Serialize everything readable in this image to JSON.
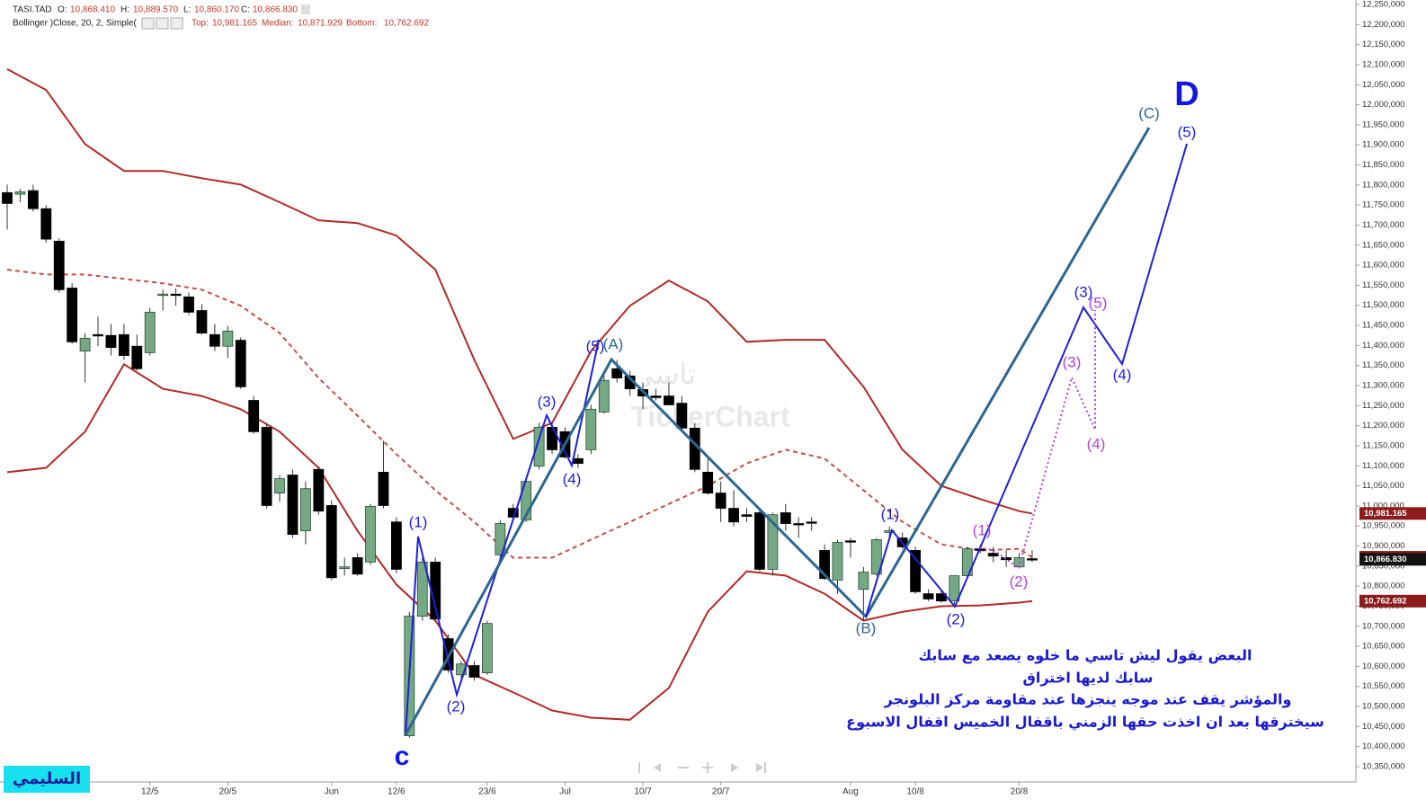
{
  "header": {
    "symbol": "TASI.TAD",
    "o_label": "O:",
    "o": "10,868.410",
    "h_label": "H:",
    "h": "10,889.570",
    "l_label": "L:",
    "l": "10,860.170",
    "c_label": "C:",
    "c": "10,866.830",
    "indicator": "Bollinger )Close, 20, 2, Simple(",
    "top_label": "Top:",
    "top": "10,981.165",
    "median_label": "Median:",
    "median": "10,871.929",
    "bottom_label": "Bottom:",
    "bottom": "10,762.692"
  },
  "watermark": [
    "تاسي",
    "TickerChart"
  ],
  "notes": [
    "البعض يقول ليش تاسي ما خلوه يصعد مع سابك",
    "سابك لديها اختراق",
    "والمؤشر يقف عند موجه ينجزها عند مقاومة مركز البلونجر",
    "سيخترقها بعد ان اخذت حقها الزمني باقفال الخميس اقفال الاسبوع"
  ],
  "author": "السليمي",
  "chart_data": {
    "type": "candlestick",
    "categories": [
      null,
      null,
      null,
      null,
      null,
      null,
      null,
      null,
      null,
      null,
      null,
      "12/5",
      null,
      null,
      null,
      null,
      null,
      "20/5",
      null,
      null,
      null,
      null,
      null,
      null,
      null,
      "Jun",
      null,
      null,
      null,
      null,
      "12/6",
      null,
      null,
      null,
      null,
      null,
      null,
      "23/6",
      null,
      null,
      null,
      null,
      null,
      "Jul",
      null,
      null,
      null,
      null,
      null,
      "10/7",
      null,
      null,
      null,
      null,
      null,
      "20/7",
      null,
      null,
      null,
      null,
      null,
      null,
      null,
      null,
      null,
      "Aug",
      null,
      null,
      null,
      null,
      "10/8",
      null,
      null,
      null,
      null,
      null,
      null,
      null,
      "20/8",
      null
    ],
    "open": [
      11781000,
      11777000,
      11786000,
      11741000,
      11660000,
      11543000,
      11386000,
      11427000,
      11425000,
      11427000,
      11398000,
      11382000,
      11526000,
      11528000,
      11521000,
      11487000,
      11427000,
      11398000,
      11413000,
      11263000,
      11196000,
      11032000,
      11077000,
      10938000,
      11091000,
      11001000,
      10844000,
      10871000,
      10860000,
      11084000,
      10960000,
      10427000,
      10725000,
      10860000,
      10669000,
      10579000,
      10602000,
      10584000,
      10878000,
      10994000,
      10965000,
      11099000,
      11196000,
      11185000,
      11118000,
      11140000,
      11234000,
      11342000,
      11324000,
      11290000,
      11274000,
      11274000,
      11256000,
      11194000,
      11084000,
      11032000,
      10994000,
      10978000,
      10983000,
      10842000,
      10983000,
      10956000,
      10960000,
      10889000,
      10815000,
      10913000,
      10792000,
      10830000,
      10934000,
      10920000,
      10889000,
      10781000,
      10781000,
      10763000,
      10826000,
      10893000,
      10882000,
      10871000,
      10848000,
      10868410
    ],
    "high": [
      11801000,
      11790000,
      11801000,
      11750000,
      11667000,
      11555000,
      11431000,
      11472000,
      11454000,
      11454000,
      11427000,
      11494000,
      11539000,
      11543000,
      11532000,
      11503000,
      11454000,
      11449000,
      11420000,
      11274000,
      11207000,
      11077000,
      11091000,
      11061000,
      11099000,
      11014000,
      10871000,
      10882000,
      11005000,
      11162000,
      10972000,
      10736000,
      10871000,
      10871000,
      10680000,
      10613000,
      10613000,
      10714000,
      10965000,
      11005000,
      11068000,
      11207000,
      11207000,
      11196000,
      11129000,
      11252000,
      11331000,
      11364000,
      11337000,
      11308000,
      11292000,
      11308000,
      11274000,
      11207000,
      11118000,
      11061000,
      11039000,
      10994000,
      10994000,
      10983000,
      11005000,
      10972000,
      10972000,
      10904000,
      10916000,
      10920000,
      10848000,
      10920000,
      10949000,
      10934000,
      10898000,
      10792000,
      10792000,
      10826000,
      10898000,
      10904000,
      10898000,
      10889000,
      10882000,
      10889570
    ],
    "low": [
      11689000,
      11757000,
      11734000,
      11656000,
      11532000,
      11404000,
      11308000,
      11398000,
      11375000,
      11364000,
      11337000,
      11375000,
      11487000,
      11499000,
      11476000,
      11427000,
      11386000,
      11369000,
      11292000,
      11180000,
      10994000,
      11010000,
      10920000,
      10904000,
      10978000,
      10815000,
      10826000,
      10826000,
      10853000,
      10994000,
      10833000,
      10422000,
      10714000,
      10714000,
      10584000,
      10568000,
      10564000,
      10579000,
      10871000,
      10965000,
      10960000,
      11091000,
      11129000,
      11118000,
      11095000,
      11129000,
      11230000,
      11308000,
      11274000,
      11241000,
      11263000,
      11252000,
      11185000,
      11084000,
      11028000,
      10960000,
      10949000,
      10960000,
      10837000,
      10826000,
      10938000,
      10920000,
      10938000,
      10815000,
      10781000,
      10871000,
      10714000,
      10826000,
      10916000,
      10893000,
      10781000,
      10763000,
      10759000,
      10754000,
      10821000,
      10882000,
      10860000,
      10848000,
      10844000,
      10860170
    ],
    "close": [
      11754000,
      11783000,
      11741000,
      11665000,
      11539000,
      11409000,
      11418000,
      11425000,
      11395000,
      11375000,
      11342000,
      11483000,
      11528000,
      11526000,
      11483000,
      11431000,
      11398000,
      11436000,
      11297000,
      11185000,
      11001000,
      11068000,
      10929000,
      11043000,
      10987000,
      10821000,
      10848000,
      10830000,
      10999000,
      11001000,
      10842000,
      10725000,
      10860000,
      10718000,
      10591000,
      10606000,
      10573000,
      10707000,
      10956000,
      10972000,
      11061000,
      11196000,
      11140000,
      11122000,
      11106000,
      11241000,
      11313000,
      11319000,
      11292000,
      11274000,
      11270000,
      11252000,
      11194000,
      11091000,
      11032000,
      10994000,
      10960000,
      10974000,
      10842000,
      10978000,
      10956000,
      10954000,
      10958000,
      10819000,
      10909000,
      10911000,
      10835000,
      10916000,
      10938000,
      10898000,
      10786000,
      10768000,
      10763000,
      10826000,
      10893000,
      10889000,
      10875000,
      10866000,
      10871000,
      10866830
    ],
    "up_color": "#74a983",
    "down_color": "#000000",
    "ylim": [
      10311900,
      12261200
    ],
    "yticks": [
      {
        "value": 10350000,
        "label": "10,350,000"
      },
      {
        "value": 10400000,
        "label": "10,400,000"
      },
      {
        "value": 10450000,
        "label": "10,450,000"
      },
      {
        "value": 10500000,
        "label": "10,500,000"
      },
      {
        "value": 10550000,
        "label": "10,550,000"
      },
      {
        "value": 10600000,
        "label": "10,600,000"
      },
      {
        "value": 10650000,
        "label": "10,650,000"
      },
      {
        "value": 10700000,
        "label": "10,700,000"
      },
      {
        "value": 10750000,
        "label": "10,750,000"
      },
      {
        "value": 10800000,
        "label": "10,800,000"
      },
      {
        "value": 10850000,
        "label": "10,850,000"
      },
      {
        "value": 10900000,
        "label": "10,900,000"
      },
      {
        "value": 10950000,
        "label": "10,950,000"
      },
      {
        "value": 11000000,
        "label": "11,000,000"
      },
      {
        "value": 11050000,
        "label": "11,050,000"
      },
      {
        "value": 11100000,
        "label": "11,100,000"
      },
      {
        "value": 11150000,
        "label": "11,150,000"
      },
      {
        "value": 11200000,
        "label": "11,200,000"
      },
      {
        "value": 11250000,
        "label": "11,250,000"
      },
      {
        "value": 11300000,
        "label": "11,300,000"
      },
      {
        "value": 11350000,
        "label": "11,350,000"
      },
      {
        "value": 11400000,
        "label": "11,400,000"
      },
      {
        "value": 11450000,
        "label": "11,450,000"
      },
      {
        "value": 11500000,
        "label": "11,500,000"
      },
      {
        "value": 11550000,
        "label": "11,550,000"
      },
      {
        "value": 11600000,
        "label": "11,600,000"
      },
      {
        "value": 11650000,
        "label": "11,650,000"
      },
      {
        "value": 11700000,
        "label": "11,700,000"
      },
      {
        "value": 11750000,
        "label": "11,750,000"
      },
      {
        "value": 11800000,
        "label": "11,800,000"
      },
      {
        "value": 11850000,
        "label": "11,850,000"
      },
      {
        "value": 11900000,
        "label": "11,900,000"
      },
      {
        "value": 11950000,
        "label": "11,950,000"
      },
      {
        "value": 12000000,
        "label": "12,000,000"
      },
      {
        "value": 12050000,
        "label": "12,050,000"
      },
      {
        "value": 12100000,
        "label": "12,100,000"
      },
      {
        "value": 12150000,
        "label": "12,150,000"
      },
      {
        "value": 12200000,
        "label": "12,200,000"
      },
      {
        "value": 12250000,
        "label": "12,250,000"
      }
    ],
    "bands": [
      {
        "color": "#b02a2a",
        "dashed": false,
        "x": [
          0,
          3,
          6,
          9,
          12,
          15,
          18,
          21,
          24,
          27,
          30,
          33,
          36,
          39,
          42,
          45,
          48,
          51,
          54,
          57,
          60,
          63,
          66,
          69,
          72,
          75,
          78,
          79
        ],
        "values": [
          12089000,
          12037000,
          11902000,
          11835000,
          11835000,
          11817000,
          11801000,
          11757000,
          11712000,
          11705000,
          11674000,
          11589000,
          11364000,
          11167000,
          11207000,
          11386000,
          11499000,
          11562000,
          11510000,
          11409000,
          11414000,
          11414000,
          11297000,
          11140000,
          11050000,
          11017000,
          10987000,
          10981165
        ]
      },
      {
        "color": "#c0504d",
        "dashed": true,
        "x": [
          0,
          3,
          6,
          9,
          12,
          15,
          18,
          21,
          24,
          27,
          30,
          33,
          36,
          39,
          42,
          45,
          48,
          51,
          54,
          57,
          60,
          63,
          66,
          69,
          72,
          75,
          78,
          79
        ],
        "values": [
          11589000,
          11577000,
          11577000,
          11566000,
          11555000,
          11539000,
          11499000,
          11431000,
          11319000,
          11225000,
          11129000,
          11039000,
          10960000,
          10871000,
          10871000,
          10916000,
          10960000,
          11005000,
          11050000,
          11106000,
          11140000,
          11118000,
          11039000,
          10960000,
          10904000,
          10889000,
          10893000,
          10871929
        ]
      },
      {
        "color": "#b02a2a",
        "dashed": false,
        "x": [
          0,
          3,
          6,
          9,
          12,
          15,
          18,
          21,
          24,
          27,
          30,
          33,
          36,
          39,
          42,
          45,
          48,
          51,
          54,
          57,
          60,
          63,
          66,
          69,
          72,
          75,
          78,
          79
        ],
        "values": [
          11084000,
          11095000,
          11185000,
          11353000,
          11292000,
          11274000,
          11241000,
          11185000,
          11095000,
          10938000,
          10804000,
          10714000,
          10579000,
          10535000,
          10490000,
          10472000,
          10467000,
          10546000,
          10736000,
          10837000,
          10826000,
          10781000,
          10714000,
          10736000,
          10750000,
          10752000,
          10759000,
          10762692
        ]
      }
    ],
    "price_tags": [
      {
        "value": 10981165,
        "label": "10,981.165",
        "color": "#8e1b1b"
      },
      {
        "value": 10871929,
        "label": "10,871.929",
        "color": "#8e1b1b"
      },
      {
        "value": 10866830,
        "label": "10,866.830",
        "color": "#111111"
      },
      {
        "value": 10762692,
        "label": "10,762.692",
        "color": "#8e1b1b"
      }
    ],
    "annotations": [
      {
        "text": "(1)",
        "color": "#1f1fd6"
      },
      {
        "text": "(2)",
        "color": "#1f1fd6"
      },
      {
        "text": "(3)",
        "color": "#1f1fd6"
      },
      {
        "text": "(4)",
        "color": "#1f1fd6"
      },
      {
        "text": "(5)",
        "color": "#1f1fd6"
      },
      {
        "text": "(A)",
        "color": "#2f6690"
      },
      {
        "text": "(B)",
        "color": "#2f6690"
      },
      {
        "text": "(C)",
        "color": "#2f6690"
      },
      {
        "text": "(1)",
        "color": "#1f1fd6"
      },
      {
        "text": "(2)",
        "color": "#1f1fd6"
      },
      {
        "text": "(3)",
        "color": "#1f1fd6"
      },
      {
        "text": "(4)",
        "color": "#1f1fd6"
      },
      {
        "text": "(5)",
        "color": "#1f1fd6"
      },
      {
        "text": "(1)",
        "color": "#b23fd9"
      },
      {
        "text": "(2)",
        "color": "#b23fd9"
      },
      {
        "text": "(3)",
        "color": "#b23fd9"
      },
      {
        "text": "(4)",
        "color": "#b23fd9"
      },
      {
        "text": "(5)",
        "color": "#b23fd9"
      },
      {
        "text": "c",
        "color": "#1515e0"
      },
      {
        "text": "D",
        "color": "#1515e0"
      }
    ]
  }
}
